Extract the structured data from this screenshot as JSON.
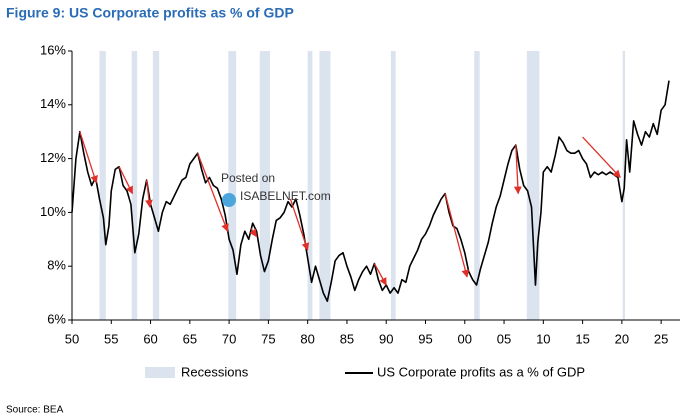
{
  "chart_data": {
    "type": "line",
    "title": "Figure 9: US Corporate profits as % of GDP",
    "source": "Source: BEA",
    "watermark": [
      "Posted on",
      "ISABELNET.com"
    ],
    "xlim": [
      1950,
      2027.4
    ],
    "ylim": [
      6,
      16
    ],
    "grid": false,
    "xticks": [
      {
        "value": 1950,
        "label": "50"
      },
      {
        "value": 1955,
        "label": "55"
      },
      {
        "value": 1960,
        "label": "60"
      },
      {
        "value": 1965,
        "label": "65"
      },
      {
        "value": 1970,
        "label": "70"
      },
      {
        "value": 1975,
        "label": "75"
      },
      {
        "value": 1980,
        "label": "80"
      },
      {
        "value": 1985,
        "label": "85"
      },
      {
        "value": 1990,
        "label": "90"
      },
      {
        "value": 1995,
        "label": "95"
      },
      {
        "value": 2000,
        "label": "00"
      },
      {
        "value": 2005,
        "label": "05"
      },
      {
        "value": 2010,
        "label": "10"
      },
      {
        "value": 2015,
        "label": "15"
      },
      {
        "value": 2020,
        "label": "20"
      },
      {
        "value": 2025,
        "label": "25"
      }
    ],
    "yticks": [
      {
        "value": 6,
        "label": "6%"
      },
      {
        "value": 8,
        "label": "8%"
      },
      {
        "value": 10,
        "label": "10%"
      },
      {
        "value": 12,
        "label": "12%"
      },
      {
        "value": 14,
        "label": "14%"
      },
      {
        "value": 16,
        "label": "16%"
      }
    ],
    "recessions": {
      "name": "Recessions",
      "color": "#dbe3ef",
      "ranges": [
        [
          1953.5,
          1954.3
        ],
        [
          1957.6,
          1958.3
        ],
        [
          1960.3,
          1961.1
        ],
        [
          1969.9,
          1970.9
        ],
        [
          1973.9,
          1975.2
        ],
        [
          1980.0,
          1980.6
        ],
        [
          1981.5,
          1982.9
        ],
        [
          1990.6,
          1991.2
        ],
        [
          2001.2,
          2001.9
        ],
        [
          2007.9,
          2009.5
        ],
        [
          2020.1,
          2020.4
        ]
      ]
    },
    "arrows": {
      "color": "#e0302a",
      "items": [
        {
          "x": [
            1951,
            1953.1
          ],
          "y": [
            13.0,
            11.1
          ]
        },
        {
          "x": [
            1956,
            1957.7
          ],
          "y": [
            11.7,
            10.7
          ]
        },
        {
          "x": [
            1959.5,
            1959.9
          ],
          "y": [
            11.2,
            10.2
          ]
        },
        {
          "x": [
            1966,
            1969.8
          ],
          "y": [
            12.2,
            9.3
          ]
        },
        {
          "x": [
            1972.8,
            1973.5
          ],
          "y": [
            9.4,
            9.1
          ]
        },
        {
          "x": [
            1977.8,
            1980
          ],
          "y": [
            10.5,
            8.6
          ]
        },
        {
          "x": [
            1988.5,
            1990
          ],
          "y": [
            8.1,
            7.3
          ]
        },
        {
          "x": [
            1997.5,
            2000.3
          ],
          "y": [
            10.7,
            7.6
          ]
        },
        {
          "x": [
            2006.5,
            2006.8
          ],
          "y": [
            12.5,
            10.7
          ]
        },
        {
          "x": [
            2015,
            2019.8
          ],
          "y": [
            12.8,
            11.3
          ]
        }
      ]
    },
    "series": [
      {
        "name": "US Corporate profits as a % of GDP",
        "color": "#000000",
        "x": [
          1950,
          1950.5,
          1951,
          1951.5,
          1952,
          1952.5,
          1953,
          1953.5,
          1954,
          1954.3,
          1954.7,
          1955,
          1955.5,
          1956,
          1956.5,
          1957,
          1957.5,
          1958,
          1958.5,
          1959,
          1959.5,
          1960,
          1960.5,
          1961,
          1961.5,
          1962,
          1962.5,
          1963,
          1963.5,
          1964,
          1964.5,
          1965,
          1965.5,
          1966,
          1966.5,
          1967,
          1967.5,
          1968,
          1968.5,
          1969,
          1969.5,
          1970,
          1970.5,
          1971,
          1971.5,
          1972,
          1972.5,
          1973,
          1973.5,
          1974,
          1974.5,
          1975,
          1975.5,
          1976,
          1976.5,
          1977,
          1977.5,
          1978,
          1978.5,
          1979,
          1979.5,
          1980,
          1980.5,
          1981,
          1981.5,
          1982,
          1982.5,
          1983,
          1983.5,
          1984,
          1984.5,
          1985,
          1985.5,
          1986,
          1986.5,
          1987,
          1987.5,
          1988,
          1988.5,
          1989,
          1989.5,
          1990,
          1990.5,
          1991,
          1991.5,
          1992,
          1992.5,
          1993,
          1993.5,
          1994,
          1994.5,
          1995,
          1995.5,
          1996,
          1996.5,
          1997,
          1997.5,
          1998,
          1998.5,
          1999,
          1999.5,
          2000,
          2000.5,
          2001,
          2001.5,
          2002,
          2002.5,
          2003,
          2003.5,
          2004,
          2004.5,
          2005,
          2005.5,
          2006,
          2006.5,
          2007,
          2007.5,
          2008,
          2008.5,
          2009,
          2009.3,
          2009.7,
          2010,
          2010.5,
          2011,
          2011.5,
          2012,
          2012.5,
          2013,
          2013.5,
          2014,
          2014.5,
          2015,
          2015.5,
          2016,
          2016.5,
          2017,
          2017.5,
          2018,
          2018.5,
          2019,
          2019.5,
          2020,
          2020.3,
          2020.6,
          2021,
          2021.5,
          2022,
          2022.5,
          2023,
          2023.5,
          2024,
          2024.5,
          2025,
          2025.5,
          2026
        ],
        "values": [
          10.0,
          12.0,
          13.0,
          12.2,
          11.5,
          11.0,
          11.3,
          10.5,
          9.8,
          8.8,
          9.5,
          10.8,
          11.6,
          11.7,
          11.0,
          10.8,
          10.3,
          8.5,
          9.2,
          10.5,
          11.2,
          10.3,
          9.8,
          9.3,
          10.0,
          10.4,
          10.3,
          10.6,
          10.9,
          11.2,
          11.3,
          11.8,
          12.0,
          12.2,
          11.6,
          11.1,
          11.3,
          11.0,
          10.9,
          10.5,
          9.9,
          9.0,
          8.6,
          7.7,
          8.8,
          9.3,
          9.0,
          9.6,
          9.3,
          8.4,
          7.8,
          8.2,
          9.0,
          9.7,
          9.8,
          10.0,
          10.4,
          10.2,
          10.5,
          9.9,
          9.2,
          8.3,
          7.4,
          8.0,
          7.5,
          7.0,
          6.7,
          7.4,
          8.2,
          8.4,
          8.5,
          8.0,
          7.6,
          7.1,
          7.5,
          7.8,
          8.0,
          7.7,
          8.1,
          7.5,
          7.1,
          7.3,
          7.0,
          7.2,
          7.0,
          7.5,
          7.4,
          8.0,
          8.3,
          8.6,
          9.0,
          9.2,
          9.5,
          9.9,
          10.2,
          10.5,
          10.7,
          10.0,
          9.5,
          9.4,
          9.0,
          8.5,
          7.8,
          7.5,
          7.3,
          7.9,
          8.4,
          8.9,
          9.6,
          10.2,
          10.6,
          11.2,
          11.8,
          12.3,
          12.5,
          11.6,
          11.0,
          10.8,
          10.2,
          7.3,
          8.9,
          10.0,
          11.5,
          11.7,
          11.5,
          12.1,
          12.8,
          12.6,
          12.3,
          12.2,
          12.2,
          12.3,
          12.0,
          11.8,
          11.3,
          11.5,
          11.4,
          11.5,
          11.4,
          11.5,
          11.4,
          11.3,
          10.4,
          10.9,
          12.7,
          11.5,
          13.4,
          12.9,
          12.5,
          13.0,
          12.8,
          13.3,
          12.9,
          13.8,
          14.0,
          14.9
        ]
      }
    ]
  }
}
